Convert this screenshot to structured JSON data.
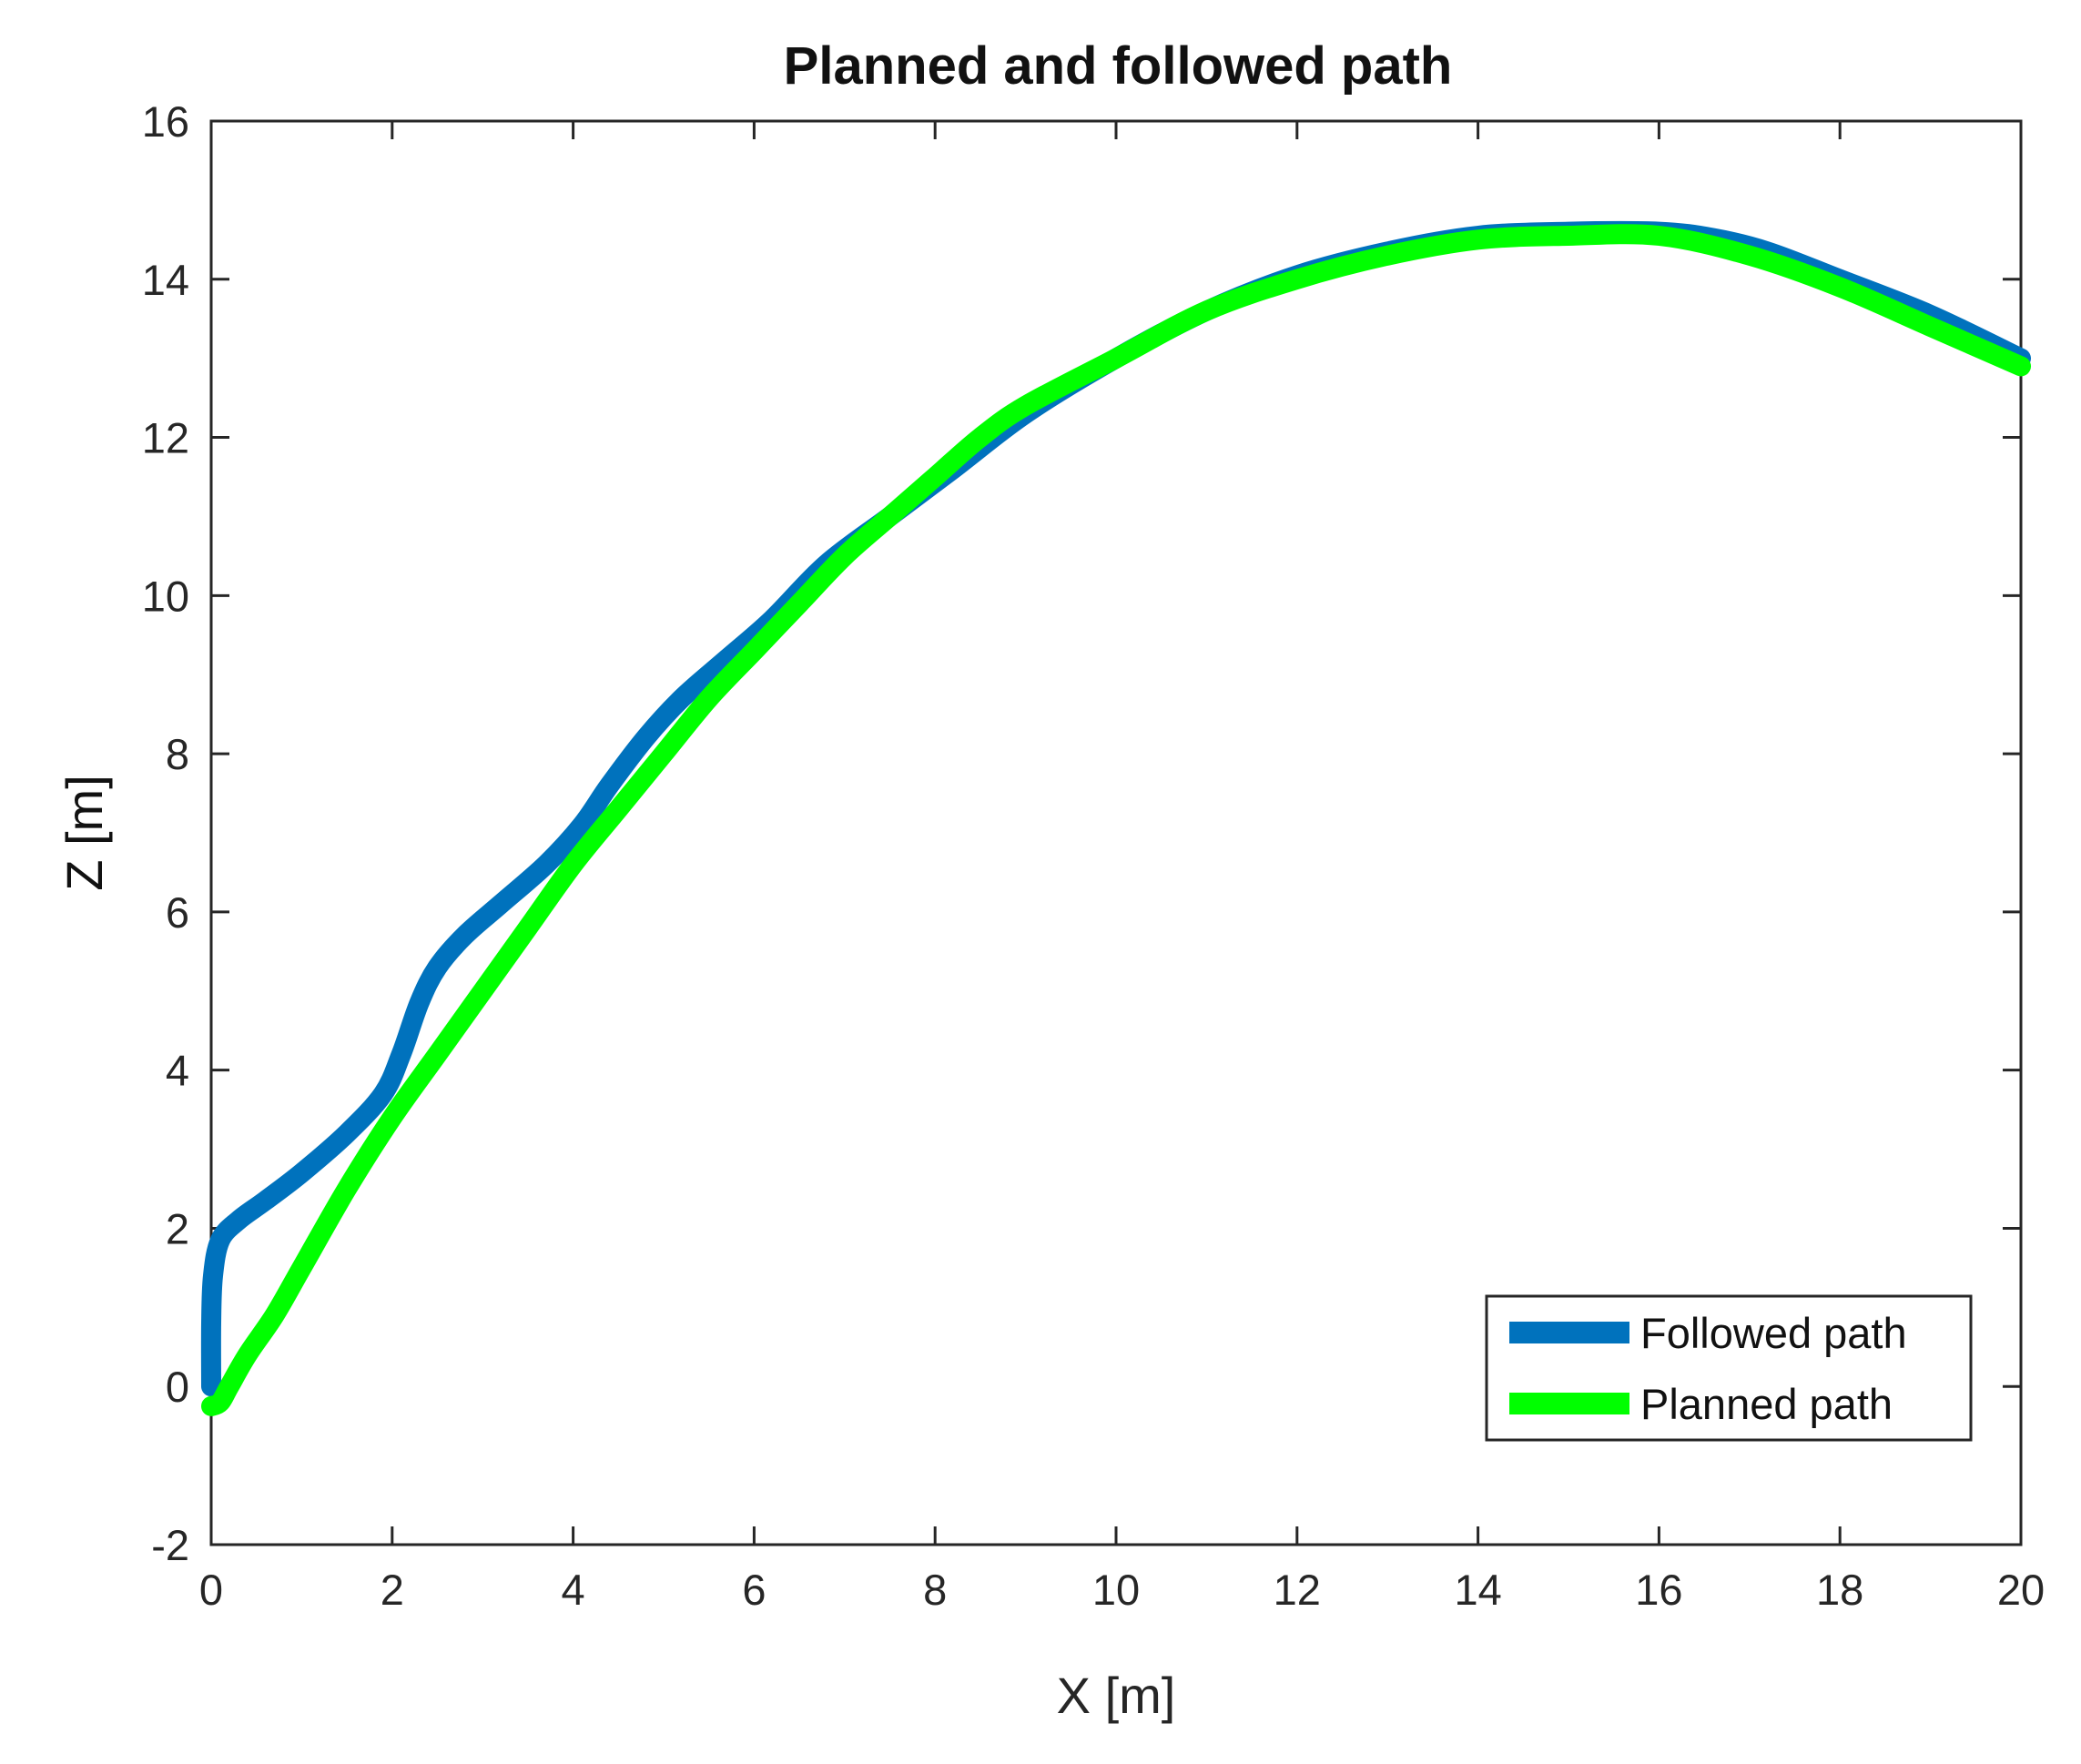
{
  "chart_data": {
    "type": "line",
    "title": "Planned and followed path",
    "xlabel": "X [m]",
    "ylabel": "Z [m]",
    "xlim": [
      0,
      20
    ],
    "ylim": [
      -2,
      16
    ],
    "xticks": [
      0,
      2,
      4,
      6,
      8,
      10,
      12,
      14,
      16,
      18,
      20
    ],
    "yticks": [
      -2,
      0,
      2,
      4,
      6,
      8,
      10,
      12,
      14,
      16
    ],
    "grid": false,
    "legend_position": "bottom-right",
    "series": [
      {
        "name": "Followed path",
        "color": "#0072BD",
        "x": [
          0.0,
          0.0,
          0.02,
          0.1,
          0.3,
          0.6,
          1.0,
          1.5,
          1.9,
          2.1,
          2.3,
          2.5,
          2.8,
          3.2,
          3.7,
          4.1,
          4.4,
          4.8,
          5.2,
          5.7,
          6.2,
          6.8,
          7.5,
          8.2,
          9.0,
          10.0,
          11.0,
          12.0,
          13.0,
          14.0,
          15.0,
          16.0,
          16.6,
          17.2,
          18.0,
          19.0,
          20.0
        ],
        "y": [
          0.0,
          0.8,
          1.4,
          1.85,
          2.1,
          2.35,
          2.7,
          3.2,
          3.7,
          4.2,
          4.85,
          5.3,
          5.7,
          6.1,
          6.6,
          7.1,
          7.6,
          8.2,
          8.7,
          9.2,
          9.7,
          10.4,
          11.0,
          11.6,
          12.3,
          13.0,
          13.6,
          14.05,
          14.35,
          14.55,
          14.6,
          14.6,
          14.52,
          14.35,
          14.0,
          13.55,
          13.0
        ]
      },
      {
        "name": "Planned path",
        "color": "#00FF00",
        "x": [
          0.0,
          0.1,
          0.2,
          0.4,
          0.7,
          1.0,
          1.5,
          2.0,
          2.5,
          3.0,
          3.5,
          4.0,
          4.5,
          5.0,
          5.5,
          6.0,
          6.5,
          7.0,
          7.5,
          8.0,
          8.5,
          9.0,
          10.0,
          11.0,
          12.0,
          13.0,
          14.0,
          15.0,
          16.0,
          17.0,
          18.0,
          19.0,
          20.0
        ],
        "y": [
          -0.25,
          -0.2,
          0.0,
          0.4,
          0.9,
          1.5,
          2.5,
          3.4,
          4.2,
          5.0,
          5.8,
          6.6,
          7.3,
          8.0,
          8.7,
          9.3,
          9.9,
          10.5,
          11.0,
          11.5,
          12.0,
          12.4,
          13.0,
          13.6,
          14.0,
          14.3,
          14.5,
          14.55,
          14.55,
          14.3,
          13.9,
          13.4,
          12.9
        ]
      }
    ]
  }
}
